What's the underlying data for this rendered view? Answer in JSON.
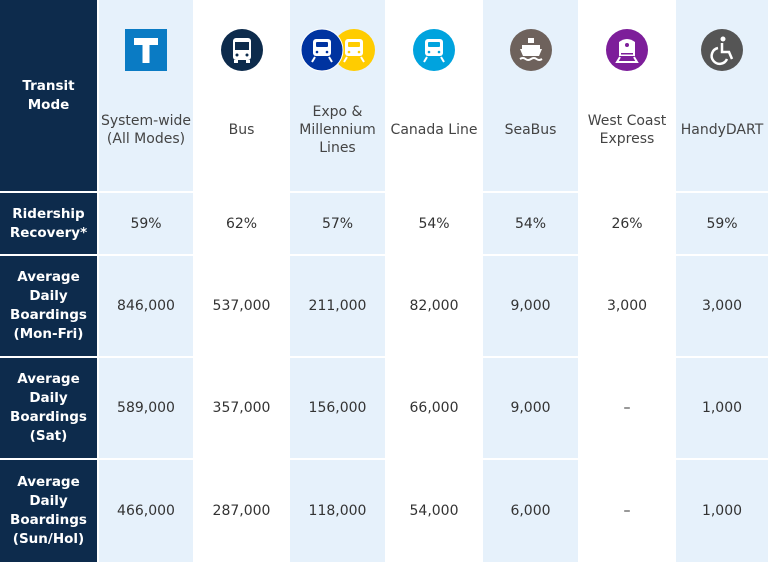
{
  "header_label": "Transit Mode",
  "columns": [
    {
      "name": "System-wide (All Modes)",
      "icon": "translink-t-icon",
      "color": "#0a7bc4"
    },
    {
      "name": "Bus",
      "icon": "bus-icon",
      "color": "#0d2b4c"
    },
    {
      "name": "Expo & Millennium Lines",
      "icon": "skytrain-icon",
      "color": "#0033a0",
      "color2": "#ffcc00"
    },
    {
      "name": "Canada Line",
      "icon": "train-icon",
      "color": "#00a3de"
    },
    {
      "name": "SeaBus",
      "icon": "ferry-icon",
      "color": "#6e625c"
    },
    {
      "name": "West Coast Express",
      "icon": "commuter-train-icon",
      "color": "#7d1e9a"
    },
    {
      "name": "HandyDART",
      "icon": "wheelchair-icon",
      "color": "#555555"
    }
  ],
  "rows": [
    {
      "label": "Ridership Recovery*",
      "values": [
        "59%",
        "62%",
        "57%",
        "54%",
        "54%",
        "26%",
        "59%"
      ]
    },
    {
      "label": "Average Daily Boardings (Mon-Fri)",
      "values": [
        "846,000",
        "537,000",
        "211,000",
        "82,000",
        "9,000",
        "3,000",
        "3,000"
      ]
    },
    {
      "label": "Average Daily Boardings (Sat)",
      "values": [
        "589,000",
        "357,000",
        "156,000",
        "66,000",
        "9,000",
        "–",
        "1,000"
      ]
    },
    {
      "label": "Average Daily Boardings (Sun/Hol)",
      "values": [
        "466,000",
        "287,000",
        "118,000",
        "54,000",
        "6,000",
        "–",
        "1,000"
      ]
    }
  ]
}
